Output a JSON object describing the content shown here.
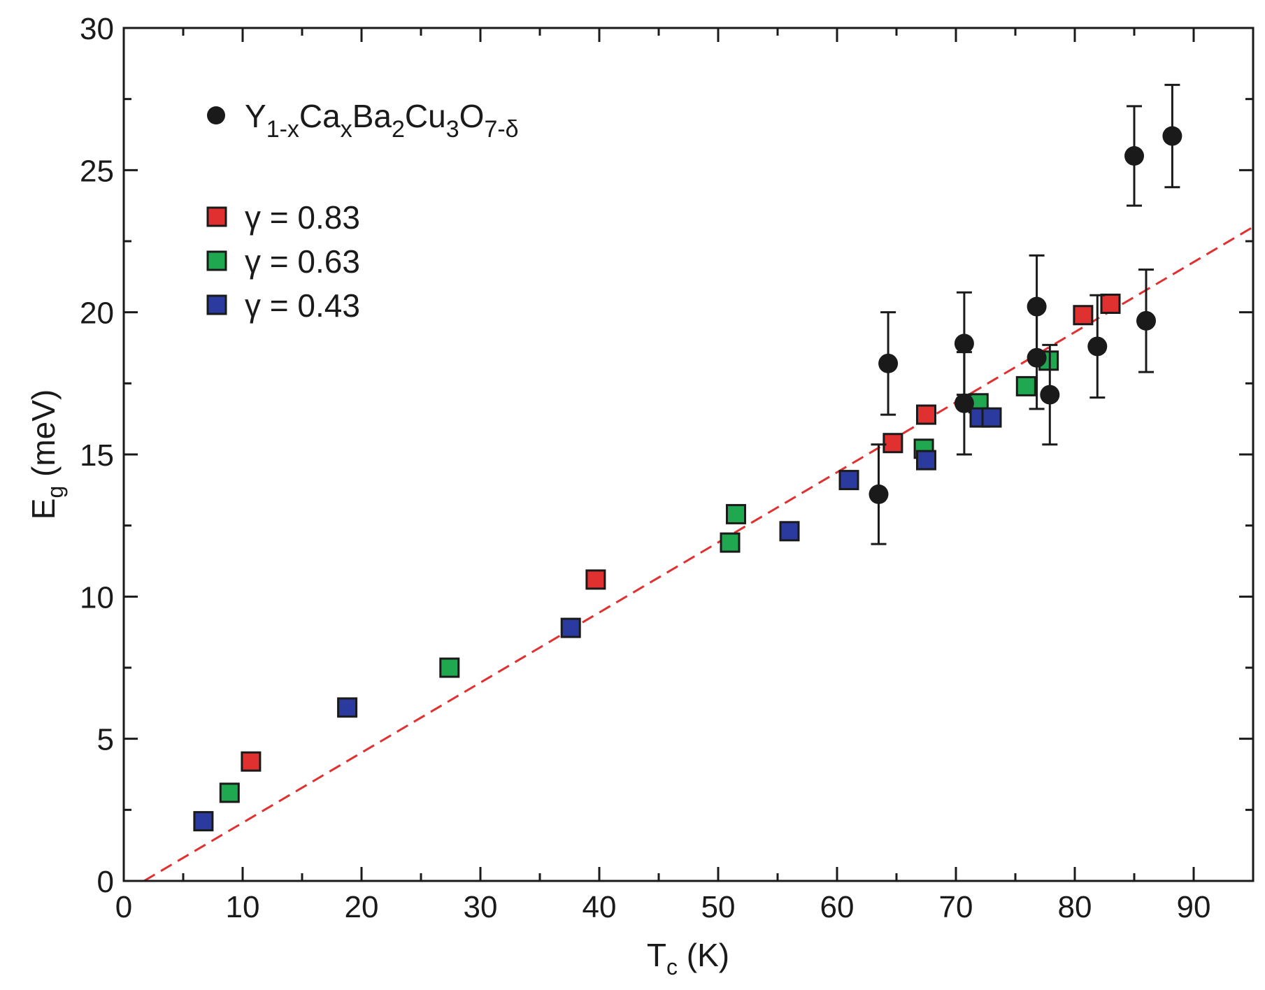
{
  "chart_data": {
    "type": "scatter",
    "xlabel": {
      "main": "T",
      "sub": "c",
      "rest": " (K)"
    },
    "ylabel": {
      "main": "E",
      "sub": "g",
      "rest": " (meV)"
    },
    "xlim": [
      0,
      95
    ],
    "ylim": [
      0,
      30
    ],
    "xticks": [
      0,
      10,
      20,
      30,
      40,
      50,
      60,
      70,
      80,
      90
    ],
    "yticks": [
      0,
      5,
      10,
      15,
      20,
      25,
      30
    ],
    "xtick_labels": [
      "0",
      "10",
      "20",
      "30",
      "40",
      "50",
      "60",
      "70",
      "80",
      "90"
    ],
    "ytick_labels": [
      "0",
      "5",
      "10",
      "15",
      "20",
      "25",
      "30"
    ],
    "legend_position": "top-left",
    "fit_line": {
      "style": "dashed",
      "color": "#e03030",
      "x": [
        1.7,
        95
      ],
      "y": [
        0,
        23
      ]
    },
    "series": [
      {
        "name": "Y1-xCaxBa2Cu3O7-δ",
        "legend_parts": [
          {
            "t": "Y",
            "sub": false
          },
          {
            "t": "1-x",
            "sub": true
          },
          {
            "t": "Ca",
            "sub": false
          },
          {
            "t": "x",
            "sub": true
          },
          {
            "t": "Ba",
            "sub": false
          },
          {
            "t": "2",
            "sub": true
          },
          {
            "t": "Cu",
            "sub": false
          },
          {
            "t": "3",
            "sub": true
          },
          {
            "t": "O",
            "sub": false
          },
          {
            "t": "7-δ",
            "sub": true
          }
        ],
        "marker": "circle",
        "color": "#1a1a1a",
        "points": [
          {
            "x": 63.5,
            "y": 13.6,
            "err": 1.75
          },
          {
            "x": 64.3,
            "y": 18.2,
            "err": 1.8
          },
          {
            "x": 70.7,
            "y": 18.9,
            "err": 1.8
          },
          {
            "x": 70.7,
            "y": 16.8,
            "err": 1.8
          },
          {
            "x": 76.8,
            "y": 20.2,
            "err": 1.8
          },
          {
            "x": 76.8,
            "y": 18.4,
            "err": 1.8
          },
          {
            "x": 77.9,
            "y": 17.1,
            "err": 1.75
          },
          {
            "x": 81.9,
            "y": 18.8,
            "err": 1.8
          },
          {
            "x": 86.0,
            "y": 19.7,
            "err": 1.8
          },
          {
            "x": 85.0,
            "y": 25.5,
            "err": 1.75
          },
          {
            "x": 88.2,
            "y": 26.2,
            "err": 1.8
          }
        ]
      },
      {
        "name": "γ = 0.83",
        "marker": "square",
        "color": "#e03030",
        "points": [
          {
            "x": 10.7,
            "y": 4.2
          },
          {
            "x": 39.7,
            "y": 10.6
          },
          {
            "x": 64.7,
            "y": 15.4
          },
          {
            "x": 67.5,
            "y": 16.4
          },
          {
            "x": 80.7,
            "y": 19.9
          },
          {
            "x": 83.0,
            "y": 20.3
          }
        ]
      },
      {
        "name": "γ = 0.63",
        "marker": "square",
        "color": "#1fa84f",
        "points": [
          {
            "x": 8.9,
            "y": 3.1
          },
          {
            "x": 27.4,
            "y": 7.5
          },
          {
            "x": 51.0,
            "y": 11.9
          },
          {
            "x": 51.5,
            "y": 12.9
          },
          {
            "x": 67.3,
            "y": 15.2
          },
          {
            "x": 71.9,
            "y": 16.8
          },
          {
            "x": 75.9,
            "y": 17.4
          },
          {
            "x": 77.8,
            "y": 18.3
          }
        ]
      },
      {
        "name": "γ = 0.43",
        "marker": "square",
        "color": "#2b3a9e",
        "points": [
          {
            "x": 6.7,
            "y": 2.1
          },
          {
            "x": 18.8,
            "y": 6.1
          },
          {
            "x": 37.6,
            "y": 8.9
          },
          {
            "x": 56.0,
            "y": 12.3
          },
          {
            "x": 61.0,
            "y": 14.1
          },
          {
            "x": 67.5,
            "y": 14.8
          },
          {
            "x": 72.0,
            "y": 16.3
          },
          {
            "x": 73.0,
            "y": 16.3
          }
        ]
      }
    ]
  }
}
